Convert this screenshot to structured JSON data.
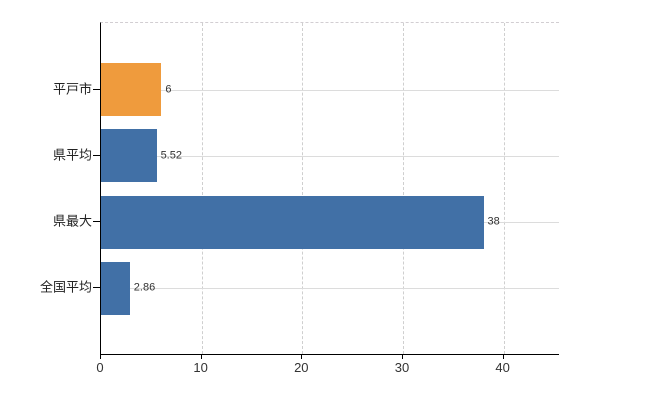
{
  "chart_data": {
    "type": "bar",
    "orientation": "horizontal",
    "categories": [
      "平戸市",
      "県平均",
      "県最大",
      "全国平均"
    ],
    "values": [
      6,
      5.52,
      38,
      2.86
    ],
    "value_labels": [
      "6",
      "5.52",
      "38",
      "2.86"
    ],
    "bar_colors": [
      "#ef9b3d",
      "#4170a6",
      "#4170a6",
      "#4170a6"
    ],
    "x_ticks": [
      0,
      10,
      20,
      30,
      40
    ],
    "x_tick_labels": [
      "0",
      "10",
      "20",
      "30",
      "40"
    ],
    "xlim": [
      0,
      45.5
    ],
    "grid_vertical": "dashed",
    "grid_horizontal": "solid",
    "legend": false,
    "title": ""
  },
  "colors": {
    "bar_orange": "#ef9b3d",
    "bar_blue": "#4170a6",
    "axis": "#000000",
    "gridline_vertical": "#cfcfcf",
    "gridline_horizontal": "#dcdcdc",
    "value_text": "#333333",
    "category_text": "#222222"
  }
}
